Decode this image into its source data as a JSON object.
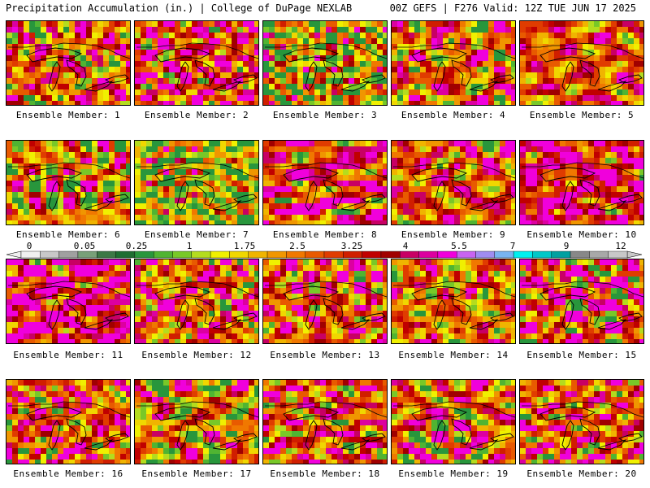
{
  "header": {
    "left": "Precipitation Accumulation (in.) | College of DuPage NEXLAB",
    "right": "00Z GEFS | F276 Valid: 12Z TUE JUN 17 2025"
  },
  "colorbar": {
    "tick_labels": [
      "0",
      "0.05",
      "0.25",
      "1",
      "1.75",
      "2.5",
      "3.25",
      "4",
      "5.5",
      "7",
      "9",
      "12"
    ],
    "colors": [
      "#f0f0f0",
      "#c8c8c8",
      "#a0a0a0",
      "#78a078",
      "#3c7846",
      "#1e6e32",
      "#28963c",
      "#50b432",
      "#78c828",
      "#b4dc1e",
      "#f0f000",
      "#f0d700",
      "#f0b400",
      "#f09600",
      "#f07800",
      "#e85a00",
      "#e03c00",
      "#d01e00",
      "#c00000",
      "#a00000",
      "#c80064",
      "#dc00a0",
      "#f000dc",
      "#c864f0",
      "#a08cf0",
      "#78b4f0",
      "#00f0f0",
      "#00c8c8",
      "#00a0a0",
      "#888888",
      "#a8a8a8",
      "#c8c8c8"
    ]
  },
  "map": {
    "members": [
      {
        "id": 1,
        "caption": "Ensemble Member: 1",
        "seed": 11,
        "wet": 0.55
      },
      {
        "id": 2,
        "caption": "Ensemble Member: 2",
        "seed": 23,
        "wet": 0.7
      },
      {
        "id": 3,
        "caption": "Ensemble Member: 3",
        "seed": 37,
        "wet": 0.3
      },
      {
        "id": 4,
        "caption": "Ensemble Member: 4",
        "seed": 41,
        "wet": 0.55
      },
      {
        "id": 5,
        "caption": "Ensemble Member: 5",
        "seed": 53,
        "wet": 0.6
      },
      {
        "id": 6,
        "caption": "Ensemble Member: 6",
        "seed": 61,
        "wet": 0.45
      },
      {
        "id": 7,
        "caption": "Ensemble Member: 7",
        "seed": 73,
        "wet": 0.25
      },
      {
        "id": 8,
        "caption": "Ensemble Member: 8",
        "seed": 89,
        "wet": 0.7
      },
      {
        "id": 9,
        "caption": "Ensemble Member: 9",
        "seed": 97,
        "wet": 0.6
      },
      {
        "id": 10,
        "caption": "Ensemble Member: 10",
        "seed": 101,
        "wet": 0.8
      },
      {
        "id": 11,
        "caption": "Ensemble Member: 11",
        "seed": 113,
        "wet": 0.85
      },
      {
        "id": 12,
        "caption": "Ensemble Member: 12",
        "seed": 127,
        "wet": 0.6
      },
      {
        "id": 13,
        "caption": "Ensemble Member: 13",
        "seed": 131,
        "wet": 0.6
      },
      {
        "id": 14,
        "caption": "Ensemble Member: 14",
        "seed": 149,
        "wet": 0.5
      },
      {
        "id": 15,
        "caption": "Ensemble Member: 15",
        "seed": 157,
        "wet": 0.65
      },
      {
        "id": 16,
        "caption": "Ensemble Member: 16",
        "seed": 163,
        "wet": 0.6
      },
      {
        "id": 17,
        "caption": "Ensemble Member: 17",
        "seed": 173,
        "wet": 0.45
      },
      {
        "id": 18,
        "caption": "Ensemble Member: 18",
        "seed": 181,
        "wet": 0.6
      },
      {
        "id": 19,
        "caption": "Ensemble Member: 19",
        "seed": 191,
        "wet": 0.55
      },
      {
        "id": 20,
        "caption": "Ensemble Member: 20",
        "seed": 199,
        "wet": 0.6
      }
    ]
  }
}
